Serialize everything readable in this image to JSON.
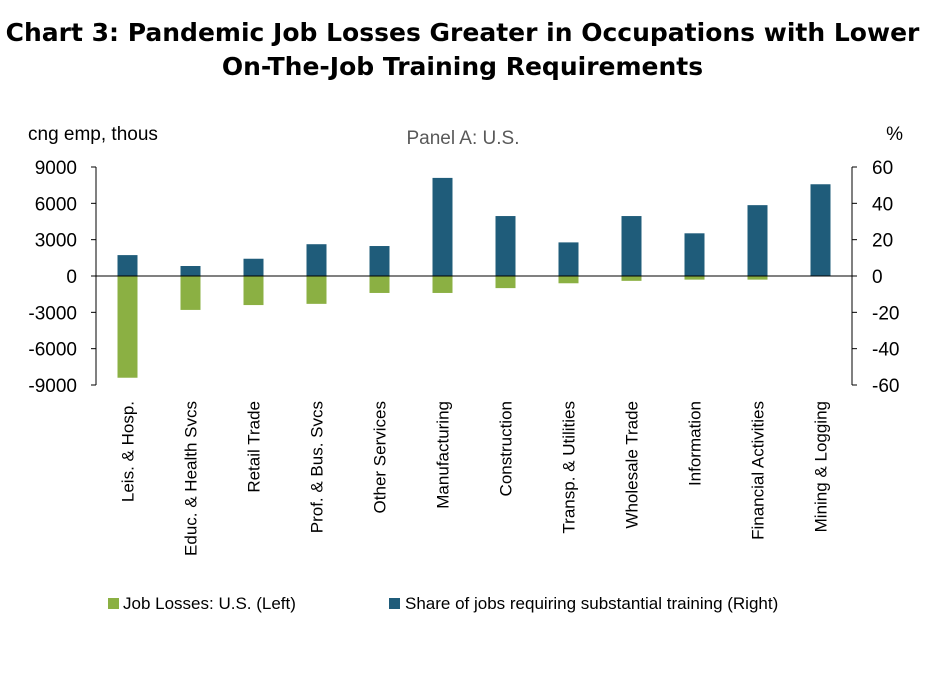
{
  "chart_data": {
    "type": "bar",
    "title_lines": [
      "Chart 3: Pandemic Job Losses Greater in Occupations with Lower",
      "On-The-Job Training Requirements"
    ],
    "subtitle": "Panel A: U.S.",
    "ylabel_left": "cng emp, thous",
    "ylabel_right": "%",
    "ylim_left": [
      -9000,
      9000
    ],
    "yticks_left": [
      9000,
      6000,
      3000,
      0,
      -3000,
      -6000,
      -9000
    ],
    "ytick_labels_left": [
      "9000",
      "6000",
      "3000",
      "0",
      "-3000",
      "-6000",
      "-9000"
    ],
    "ylim_right": [
      -60,
      60
    ],
    "yticks_right": [
      60,
      40,
      20,
      0,
      -20,
      -40,
      -60
    ],
    "ytick_labels_right": [
      "60",
      "40",
      "20",
      "0",
      "-20",
      "-40",
      "-60"
    ],
    "categories": [
      "Leis. & Hosp.",
      "Educ. & Health Svcs",
      "Retail Trade",
      "Prof. & Bus. Svcs",
      "Other Services",
      "Manufacturing",
      "Construction",
      "Transp. & Utilities",
      "Wholesale Trade",
      "Information",
      "Financial Activities",
      "Mining & Logging"
    ],
    "series": [
      {
        "name": "Job Losses: U.S. (Left)",
        "axis": "left",
        "color": "#8BB043",
        "values": [
          -8400,
          -2800,
          -2400,
          -2300,
          -1400,
          -1400,
          -1000,
          -600,
          -400,
          -300,
          -300,
          0
        ]
      },
      {
        "name": "Share of jobs requiring substantial training (Right)",
        "axis": "right",
        "color": "#1F5C7A",
        "values": [
          11.5,
          5.5,
          9.5,
          17.5,
          16.5,
          54,
          33,
          18.5,
          33,
          23.5,
          39,
          50.5
        ]
      }
    ],
    "grid": false,
    "legend_position": "bottom"
  }
}
